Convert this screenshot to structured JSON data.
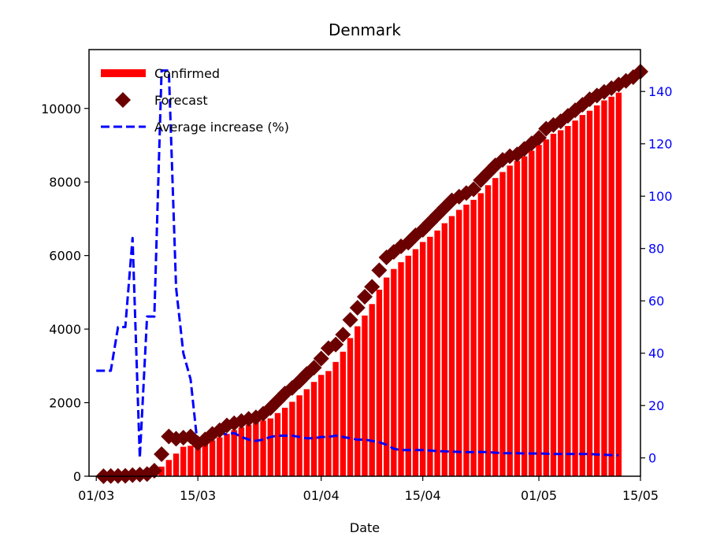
{
  "chart_data": {
    "type": "bar",
    "title": "Denmark",
    "xlabel": "Date",
    "ylabel": "",
    "y2label": "",
    "x_axis": {
      "type": "date",
      "range": [
        "2020-02-29",
        "2020-05-15"
      ],
      "ticks": [
        {
          "date": "2020-03-01",
          "label": "01/03"
        },
        {
          "date": "2020-03-15",
          "label": "15/03"
        },
        {
          "date": "2020-04-01",
          "label": "01/04"
        },
        {
          "date": "2020-04-15",
          "label": "15/04"
        },
        {
          "date": "2020-05-01",
          "label": "01/05"
        },
        {
          "date": "2020-05-15",
          "label": "15/05"
        }
      ]
    },
    "ylim": [
      0,
      11600
    ],
    "yticks": [
      0,
      2000,
      4000,
      6000,
      8000,
      10000
    ],
    "y2lim": [
      -7,
      156
    ],
    "y2ticks": [
      0,
      20,
      40,
      60,
      80,
      100,
      120,
      140
    ],
    "y2_color": "#0000ff",
    "legend": {
      "position": "top-left",
      "entries": [
        {
          "label": "Confirmed",
          "marker": "bar",
          "color": "#ff0000"
        },
        {
          "label": "Forecast",
          "marker": "diamond",
          "color": "#6b0000"
        },
        {
          "label": "Average increase (%)",
          "marker": "dashed-line",
          "color": "#0000ff"
        }
      ]
    },
    "series": [
      {
        "name": "Confirmed",
        "type": "bar",
        "axis": "left",
        "color": "#ff0000",
        "x": [
          "2020-03-01",
          "2020-03-02",
          "2020-03-03",
          "2020-03-04",
          "2020-03-05",
          "2020-03-06",
          "2020-03-07",
          "2020-03-08",
          "2020-03-09",
          "2020-03-10",
          "2020-03-11",
          "2020-03-12",
          "2020-03-13",
          "2020-03-14",
          "2020-03-15",
          "2020-03-16",
          "2020-03-17",
          "2020-03-18",
          "2020-03-19",
          "2020-03-20",
          "2020-03-21",
          "2020-03-22",
          "2020-03-23",
          "2020-03-24",
          "2020-03-25",
          "2020-03-26",
          "2020-03-27",
          "2020-03-28",
          "2020-03-29",
          "2020-03-30",
          "2020-03-31",
          "2020-04-01",
          "2020-04-02",
          "2020-04-03",
          "2020-04-04",
          "2020-04-05",
          "2020-04-06",
          "2020-04-07",
          "2020-04-08",
          "2020-04-09",
          "2020-04-10",
          "2020-04-11",
          "2020-04-12",
          "2020-04-13",
          "2020-04-14",
          "2020-04-15",
          "2020-04-16",
          "2020-04-17",
          "2020-04-18",
          "2020-04-19",
          "2020-04-20",
          "2020-04-21",
          "2020-04-22",
          "2020-04-23",
          "2020-04-24",
          "2020-04-25",
          "2020-04-26",
          "2020-04-27",
          "2020-04-28",
          "2020-04-29",
          "2020-04-30",
          "2020-05-01",
          "2020-05-02",
          "2020-05-03",
          "2020-05-04",
          "2020-05-05",
          "2020-05-06",
          "2020-05-07",
          "2020-05-08",
          "2020-05-09",
          "2020-05-10",
          "2020-05-11",
          "2020-05-12"
        ],
        "values": [
          0,
          3,
          4,
          6,
          10,
          21,
          23,
          35,
          90,
          262,
          442,
          615,
          801,
          827,
          864,
          914,
          977,
          1057,
          1151,
          1255,
          1326,
          1395,
          1460,
          1514,
          1572,
          1718,
          1862,
          2023,
          2200,
          2366,
          2564,
          2755,
          2860,
          3107,
          3386,
          3757,
          4077,
          4369,
          4681,
          5071,
          5402,
          5635,
          5819,
          5996,
          6174,
          6369,
          6511,
          6681,
          6879,
          7073,
          7242,
          7384,
          7515,
          7695,
          7912,
          8108,
          8271,
          8445,
          8575,
          8698,
          8851,
          9008,
          9158,
          9311,
          9407,
          9523,
          9670,
          9821,
          9938,
          10083,
          10218,
          10319,
          10429
        ]
      },
      {
        "name": "Forecast",
        "type": "scatter",
        "axis": "left",
        "marker": "diamond",
        "color": "#6b0000",
        "x": [
          "2020-03-02",
          "2020-03-03",
          "2020-03-04",
          "2020-03-05",
          "2020-03-06",
          "2020-03-07",
          "2020-03-08",
          "2020-03-09",
          "2020-03-10",
          "2020-03-11",
          "2020-03-12",
          "2020-03-13",
          "2020-03-14",
          "2020-03-15",
          "2020-03-16",
          "2020-03-17",
          "2020-03-18",
          "2020-03-19",
          "2020-03-20",
          "2020-03-21",
          "2020-03-22",
          "2020-03-23",
          "2020-03-24",
          "2020-03-25",
          "2020-03-26",
          "2020-03-27",
          "2020-03-28",
          "2020-03-29",
          "2020-03-30",
          "2020-03-31",
          "2020-04-01",
          "2020-04-02",
          "2020-04-03",
          "2020-04-04",
          "2020-04-05",
          "2020-04-06",
          "2020-04-07",
          "2020-04-08",
          "2020-04-09",
          "2020-04-10",
          "2020-04-11",
          "2020-04-12",
          "2020-04-13",
          "2020-04-14",
          "2020-04-15",
          "2020-04-16",
          "2020-04-17",
          "2020-04-18",
          "2020-04-19",
          "2020-04-20",
          "2020-04-21",
          "2020-04-22",
          "2020-04-23",
          "2020-04-24",
          "2020-04-25",
          "2020-04-26",
          "2020-04-27",
          "2020-04-28",
          "2020-04-29",
          "2020-04-30",
          "2020-05-01",
          "2020-05-02",
          "2020-05-03",
          "2020-05-04",
          "2020-05-05",
          "2020-05-06",
          "2020-05-07",
          "2020-05-08",
          "2020-05-09",
          "2020-05-10",
          "2020-05-11",
          "2020-05-12",
          "2020-05-13",
          "2020-05-14",
          "2020-05-15"
        ],
        "values": [
          0,
          6,
          8,
          12,
          30,
          45,
          60,
          150,
          600,
          1080,
          1020,
          1050,
          1080,
          900,
          1000,
          1150,
          1250,
          1380,
          1440,
          1500,
          1560,
          1600,
          1700,
          1850,
          2050,
          2250,
          2400,
          2580,
          2780,
          2950,
          3200,
          3480,
          3580,
          3850,
          4250,
          4580,
          4880,
          5150,
          5600,
          5950,
          6100,
          6250,
          6350,
          6550,
          6700,
          6900,
          7100,
          7300,
          7500,
          7600,
          7700,
          7800,
          8050,
          8250,
          8450,
          8600,
          8700,
          8750,
          8900,
          9050,
          9200,
          9450,
          9550,
          9650,
          9800,
          9950,
          10100,
          10250,
          10350,
          10450,
          10550,
          10650,
          10750,
          10850,
          11000
        ]
      },
      {
        "name": "Average increase (%)",
        "type": "line",
        "style": "dashed",
        "axis": "right",
        "color": "#0000ff",
        "x": [
          "2020-03-01",
          "2020-03-02",
          "2020-03-03",
          "2020-03-04",
          "2020-03-05",
          "2020-03-06",
          "2020-03-07",
          "2020-03-08",
          "2020-03-09",
          "2020-03-10",
          "2020-03-11",
          "2020-03-12",
          "2020-03-13",
          "2020-03-14",
          "2020-03-15",
          "2020-03-16",
          "2020-03-17",
          "2020-03-18",
          "2020-03-19",
          "2020-03-20",
          "2020-03-21",
          "2020-03-22",
          "2020-03-23",
          "2020-03-24",
          "2020-03-25",
          "2020-03-26",
          "2020-03-27",
          "2020-03-28",
          "2020-03-29",
          "2020-03-30",
          "2020-03-31",
          "2020-04-01",
          "2020-04-02",
          "2020-04-03",
          "2020-04-04",
          "2020-04-05",
          "2020-04-06",
          "2020-04-07",
          "2020-04-08",
          "2020-04-09",
          "2020-04-10",
          "2020-04-11",
          "2020-04-12",
          "2020-04-13",
          "2020-04-14",
          "2020-04-15",
          "2020-04-16",
          "2020-04-17",
          "2020-04-18",
          "2020-04-19",
          "2020-04-20",
          "2020-04-21",
          "2020-04-22",
          "2020-04-23",
          "2020-04-24",
          "2020-04-25",
          "2020-04-26",
          "2020-04-27",
          "2020-04-28",
          "2020-04-29",
          "2020-04-30",
          "2020-05-01",
          "2020-05-02",
          "2020-05-03",
          "2020-05-04",
          "2020-05-05",
          "2020-05-06",
          "2020-05-07",
          "2020-05-08",
          "2020-05-09",
          "2020-05-10",
          "2020-05-11",
          "2020-05-12"
        ],
        "values": [
          33.3,
          33.3,
          33.3,
          50,
          50,
          84,
          0,
          54,
          54,
          148,
          148,
          65,
          40,
          30,
          4,
          7,
          10,
          9.5,
          9,
          9.5,
          8,
          7,
          6.5,
          7,
          8,
          8.5,
          8.5,
          8.5,
          8,
          7.5,
          7.5,
          8,
          8,
          8.5,
          8,
          7.5,
          7,
          7,
          6.5,
          6,
          5,
          3.5,
          3,
          3,
          3,
          3,
          2.8,
          2.6,
          2.5,
          2.4,
          2.3,
          2.2,
          2.2,
          2.3,
          2.2,
          2,
          1.8,
          1.8,
          1.8,
          1.7,
          1.7,
          1.7,
          1.6,
          1.5,
          1.5,
          1.5,
          1.5,
          1.5,
          1.5,
          1.3,
          1.2,
          1.1,
          1.0
        ]
      }
    ]
  }
}
